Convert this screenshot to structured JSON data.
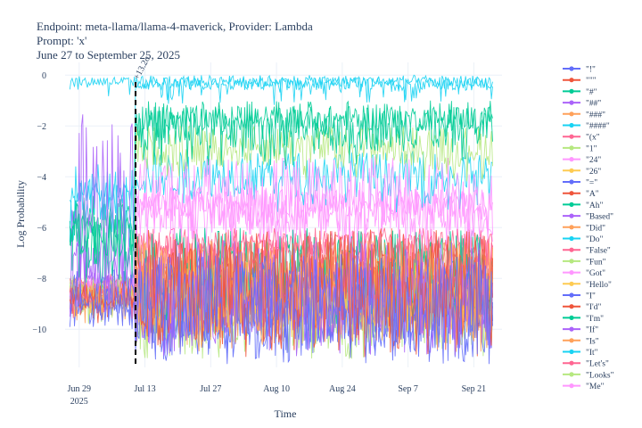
{
  "header": {
    "line1": "Endpoint: meta-llama/llama-4-maverick, Provider: Lambda",
    "line2": "Prompt: 'x'",
    "line3": "June 27 to September 25, 2025"
  },
  "chart_data": {
    "type": "line",
    "title": "Endpoint: meta-llama/llama-4-maverick, Provider: Lambda",
    "xlabel": "Time",
    "ylabel": "Log Probability",
    "xlim": [
      "2025-06-26",
      "2025-09-27"
    ],
    "ylim": [
      -11.5,
      0.5
    ],
    "x_ticks": [
      {
        "date": "2025-06-29",
        "label": "Jun 29",
        "sublabel": "2025"
      },
      {
        "date": "2025-07-13",
        "label": "Jul 13",
        "sublabel": ""
      },
      {
        "date": "2025-07-27",
        "label": "Jul 27",
        "sublabel": ""
      },
      {
        "date": "2025-08-10",
        "label": "Aug 10",
        "sublabel": ""
      },
      {
        "date": "2025-08-24",
        "label": "Aug 24",
        "sublabel": ""
      },
      {
        "date": "2025-09-07",
        "label": "Sep 7",
        "sublabel": ""
      },
      {
        "date": "2025-09-21",
        "label": "Sep 21",
        "sublabel": ""
      }
    ],
    "y_ticks": [
      0,
      -2,
      -4,
      -6,
      -8,
      -10
    ],
    "grid": true,
    "legend_position": "right",
    "annotation": {
      "date": "2025-07-11",
      "text": "+13.2σ",
      "style": "dashed vertical line"
    },
    "series": [
      {
        "name": "\"!\"",
        "color": "#636efa",
        "before": [
          -9.5,
          -7.6
        ],
        "after": [
          -10.8,
          -7.0
        ]
      },
      {
        "name": "\"\"\"",
        "color": "#ef553b",
        "before": [
          -9.2,
          -8.2
        ],
        "after": [
          -10.5,
          -6.0
        ]
      },
      {
        "name": "\"#\"",
        "color": "#00cc96",
        "before": [
          -7.0,
          -5.4
        ],
        "after": [
          -3.0,
          -1.0
        ]
      },
      {
        "name": "\"##\"",
        "color": "#ab63fa",
        "before": [
          -9.0,
          -1.5
        ],
        "after": [
          -10.5,
          -6.5
        ]
      },
      {
        "name": "\"###\"",
        "color": "#ffa15a",
        "before": [
          -9.3,
          -8.0
        ],
        "after": [
          -10.3,
          -6.5
        ]
      },
      {
        "name": "\"####\"",
        "color": "#19d3f3",
        "before": [
          -0.45,
          -0.05
        ],
        "after": [
          -0.5,
          0
        ]
      },
      {
        "name": "\"(x\"",
        "color": "#ff6692",
        "before": [
          -9.0,
          -8.3
        ],
        "after": [
          -8.5,
          -6.2
        ]
      },
      {
        "name": "\"1\"",
        "color": "#b6e880",
        "before": [
          -8.8,
          -7.8
        ],
        "after": [
          -3.6,
          -2.0
        ]
      },
      {
        "name": "\"24\"",
        "color": "#ff97ff",
        "before": [
          -8.7,
          -8.0
        ],
        "after": [
          -6.5,
          -3.2
        ]
      },
      {
        "name": "\"26\"",
        "color": "#fecb52",
        "before": [
          -9.0,
          -8.4
        ],
        "after": [
          -10.0,
          -7.2
        ]
      },
      {
        "name": "\"=\"",
        "color": "#636efa",
        "before": [
          -9.4,
          -8.4
        ],
        "after": [
          -10.4,
          -7.4
        ]
      },
      {
        "name": "\"A\"",
        "color": "#ef553b",
        "before": [
          -9.1,
          -8.1
        ],
        "after": [
          -9.6,
          -6.6
        ]
      },
      {
        "name": "\"Ah\"",
        "color": "#00cc96",
        "before": [
          -8.0,
          -4.5
        ],
        "after": [
          -9.2,
          -6.0
        ]
      },
      {
        "name": "\"Based\"",
        "color": "#ab63fa",
        "before": [
          -8.8,
          -6.5
        ],
        "after": [
          -9.8,
          -7.5
        ]
      },
      {
        "name": "\"Did\"",
        "color": "#ffa15a",
        "before": [
          -9.2,
          -8.2
        ],
        "after": [
          -9.5,
          -6.5
        ]
      },
      {
        "name": "\"Do\"",
        "color": "#19d3f3",
        "before": [
          -6.2,
          -3.5
        ],
        "after": [
          -4.8,
          -3.0
        ]
      },
      {
        "name": "\"False\"",
        "color": "#ff6692",
        "before": [
          -8.6,
          -7.8
        ],
        "after": [
          -7.8,
          -6.3
        ]
      },
      {
        "name": "\"Fun\"",
        "color": "#b6e880",
        "before": [
          -9.2,
          -8.0
        ],
        "after": [
          -10.2,
          -7.0
        ]
      },
      {
        "name": "\"Got\"",
        "color": "#ff97ff",
        "before": [
          -8.6,
          -7.9
        ],
        "after": [
          -5.6,
          -4.5
        ]
      },
      {
        "name": "\"Hello\"",
        "color": "#fecb52",
        "before": [
          -9.0,
          -8.4
        ],
        "after": [
          -9.8,
          -7.6
        ]
      },
      {
        "name": "\"I\"",
        "color": "#636efa",
        "before": [
          -9.3,
          -8.2
        ],
        "after": [
          -10.6,
          -7.6
        ]
      },
      {
        "name": "\"I'd\"",
        "color": "#ef553b",
        "before": [
          -9.1,
          -8.4
        ],
        "after": [
          -9.6,
          -7.0
        ]
      },
      {
        "name": "\"I'm\"",
        "color": "#00cc96",
        "before": [
          -6.5,
          -5.0
        ],
        "after": [
          -2.2,
          -1.2
        ]
      },
      {
        "name": "\"If\"",
        "color": "#ab63fa",
        "before": [
          -9.0,
          -7.5
        ],
        "after": [
          -10.0,
          -7.6
        ]
      },
      {
        "name": "\"Is\"",
        "color": "#ffa15a",
        "before": [
          -9.1,
          -8.4
        ],
        "after": [
          -9.8,
          -7.2
        ]
      },
      {
        "name": "\"It\"",
        "color": "#19d3f3",
        "before": [
          -5.0,
          -4.2
        ],
        "after": [
          -0.6,
          -0.1
        ]
      },
      {
        "name": "\"Let's\"",
        "color": "#ff6692",
        "before": [
          -8.6,
          -8.0
        ],
        "after": [
          -7.2,
          -6.0
        ]
      },
      {
        "name": "\"Looks\"",
        "color": "#b6e880",
        "before": [
          -9.0,
          -8.2
        ],
        "after": [
          -10.6,
          -7.6
        ]
      },
      {
        "name": "\"Me\"",
        "color": "#ff97ff",
        "before": [
          -8.5,
          -8.0
        ],
        "after": [
          -6.2,
          -4.4
        ]
      }
    ]
  }
}
